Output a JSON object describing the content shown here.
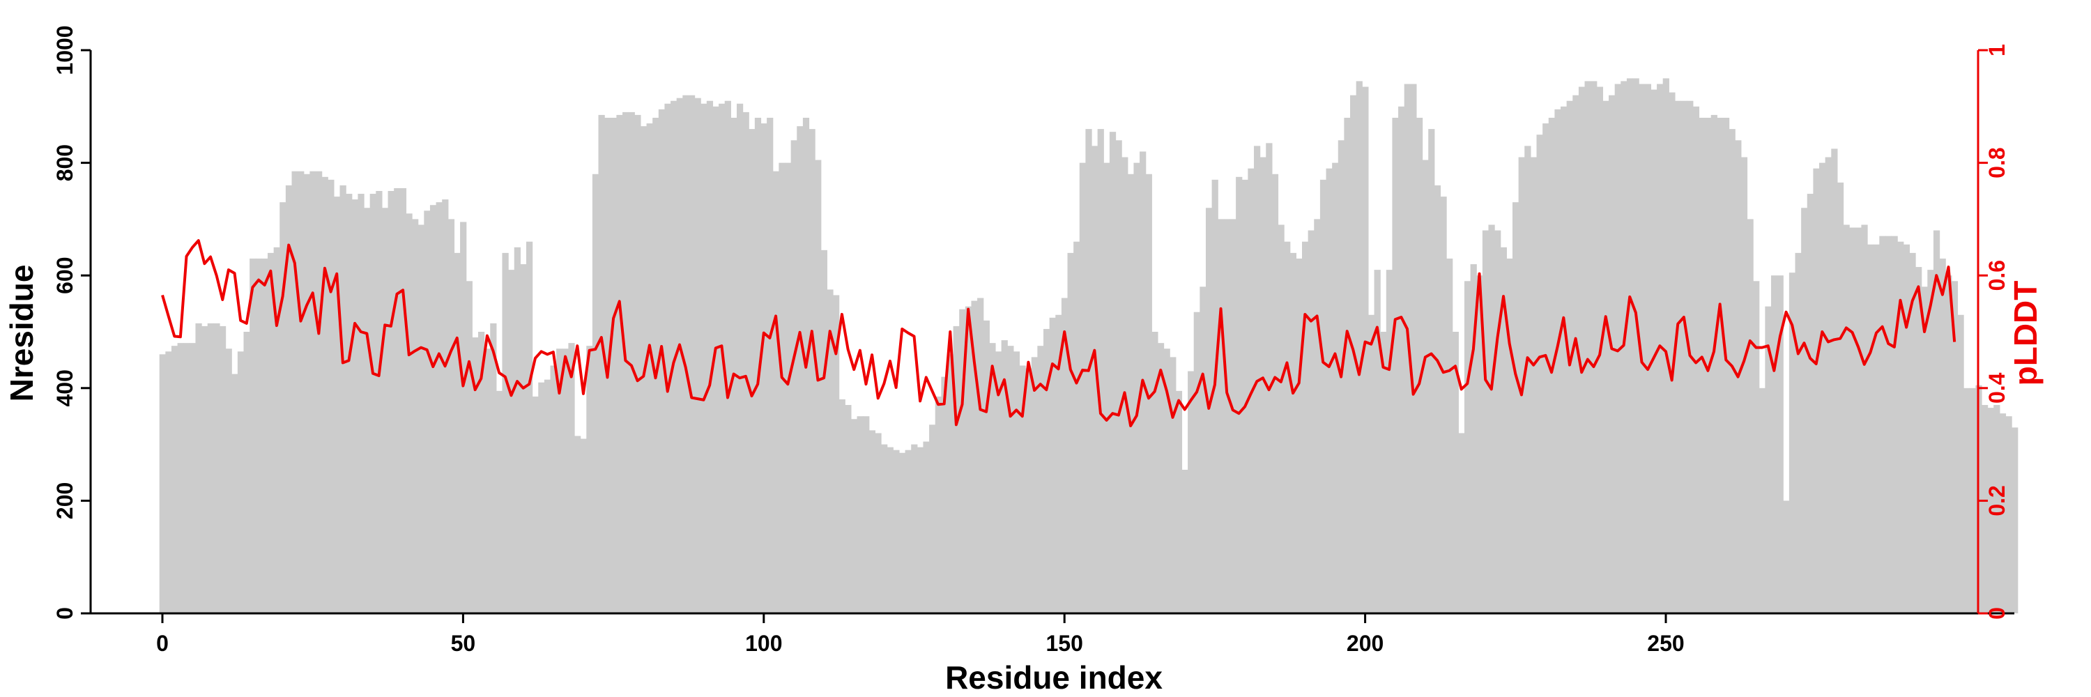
{
  "chart_data": {
    "type": "bar",
    "xlabel": "Residue index",
    "ylabel": "Nresidue",
    "y2label": "pLDDT",
    "xlim": [
      -12,
      310
    ],
    "ylim": [
      0,
      1000
    ],
    "y2lim": [
      0,
      1
    ],
    "x_ticks": [
      0,
      50,
      100,
      150,
      200,
      250
    ],
    "y_ticks": [
      0,
      200,
      400,
      600,
      800,
      1000
    ],
    "y2_ticks": [
      0,
      0.2,
      0.4,
      0.6,
      0.8,
      1
    ],
    "grid": false,
    "colors": {
      "bars": "#cccccc",
      "line": "#ee0000",
      "axis": "#000000",
      "secondary_axis": "#ee0000"
    },
    "series": [
      {
        "kind": "bar",
        "axis": "left",
        "values": [
          460,
          465,
          475,
          480,
          480,
          480,
          515,
          510,
          515,
          515,
          510,
          470,
          425,
          465,
          500,
          630,
          630,
          630,
          640,
          650,
          730,
          760,
          785,
          785,
          780,
          785,
          785,
          775,
          770,
          740,
          760,
          745,
          735,
          745,
          720,
          745,
          750,
          720,
          750,
          755,
          755,
          710,
          700,
          690,
          715,
          725,
          730,
          735,
          700,
          640,
          695,
          590,
          490,
          500,
          470,
          515,
          395,
          640,
          610,
          650,
          620,
          660,
          385,
          410,
          415,
          440,
          470,
          470,
          480,
          315,
          310,
          475,
          780,
          885,
          880,
          880,
          885,
          890,
          890,
          885,
          865,
          870,
          880,
          895,
          905,
          910,
          915,
          920,
          920,
          915,
          905,
          910,
          900,
          905,
          910,
          880,
          905,
          890,
          860,
          880,
          870,
          880,
          785,
          800,
          800,
          840,
          865,
          880,
          860,
          805,
          645,
          575,
          565,
          380,
          370,
          345,
          350,
          350,
          325,
          320,
          300,
          295,
          290,
          285,
          290,
          300,
          295,
          305,
          335,
          385,
          420,
          460,
          510,
          540,
          545,
          555,
          560,
          520,
          480,
          465,
          485,
          475,
          465,
          440,
          435,
          455,
          475,
          505,
          525,
          530,
          560,
          640,
          660,
          800,
          860,
          830,
          860,
          800,
          855,
          840,
          810,
          780,
          800,
          820,
          780,
          500,
          480,
          470,
          455,
          395,
          255,
          430,
          535,
          580,
          720,
          770,
          700,
          700,
          700,
          775,
          770,
          790,
          830,
          810,
          835,
          780,
          690,
          660,
          640,
          630,
          660,
          680,
          700,
          770,
          790,
          800,
          840,
          880,
          920,
          945,
          935,
          530,
          610,
          500,
          610,
          880,
          900,
          940,
          940,
          880,
          805,
          860,
          760,
          740,
          630,
          500,
          320,
          590,
          620,
          600,
          680,
          690,
          680,
          650,
          630,
          730,
          810,
          830,
          810,
          850,
          870,
          880,
          895,
          900,
          910,
          920,
          935,
          945,
          945,
          935,
          910,
          920,
          940,
          945,
          950,
          950,
          940,
          940,
          930,
          940,
          950,
          925,
          910,
          910,
          910,
          900,
          880,
          880,
          885,
          880,
          880,
          860,
          840,
          810,
          700,
          590,
          400,
          545,
          600,
          600,
          200,
          605,
          640,
          720,
          745,
          790,
          800,
          810,
          825,
          765,
          690,
          685,
          685,
          690,
          655,
          655,
          670,
          670,
          670,
          660,
          655,
          640,
          615,
          580,
          610,
          680,
          630,
          600,
          590,
          530,
          400,
          400,
          405,
          370,
          365,
          370,
          355,
          350,
          330
        ]
      },
      {
        "kind": "line",
        "axis": "right",
        "values": [
          0.565,
          0.528,
          0.492,
          0.491,
          0.634,
          0.65,
          0.662,
          0.621,
          0.633,
          0.6,
          0.557,
          0.61,
          0.604,
          0.52,
          0.515,
          0.579,
          0.592,
          0.583,
          0.608,
          0.511,
          0.563,
          0.654,
          0.622,
          0.519,
          0.547,
          0.569,
          0.497,
          0.613,
          0.571,
          0.603,
          0.445,
          0.449,
          0.515,
          0.5,
          0.497,
          0.426,
          0.422,
          0.512,
          0.51,
          0.567,
          0.574,
          0.459,
          0.466,
          0.472,
          0.468,
          0.438,
          0.461,
          0.439,
          0.466,
          0.489,
          0.404,
          0.447,
          0.397,
          0.417,
          0.493,
          0.466,
          0.427,
          0.42,
          0.387,
          0.412,
          0.4,
          0.407,
          0.453,
          0.465,
          0.46,
          0.464,
          0.391,
          0.456,
          0.42,
          0.475,
          0.39,
          0.467,
          0.469,
          0.49,
          0.419,
          0.524,
          0.554,
          0.449,
          0.44,
          0.413,
          0.421,
          0.476,
          0.418,
          0.474,
          0.394,
          0.445,
          0.477,
          0.437,
          0.383,
          0.381,
          0.379,
          0.405,
          0.471,
          0.475,
          0.383,
          0.425,
          0.418,
          0.421,
          0.386,
          0.407,
          0.498,
          0.489,
          0.528,
          0.419,
          0.407,
          0.453,
          0.499,
          0.437,
          0.501,
          0.414,
          0.418,
          0.501,
          0.461,
          0.531,
          0.469,
          0.433,
          0.467,
          0.407,
          0.459,
          0.382,
          0.408,
          0.448,
          0.401,
          0.505,
          0.498,
          0.492,
          0.377,
          0.419,
          0.395,
          0.371,
          0.372,
          0.5,
          0.335,
          0.371,
          0.54,
          0.447,
          0.362,
          0.358,
          0.439,
          0.388,
          0.415,
          0.35,
          0.361,
          0.35,
          0.446,
          0.396,
          0.407,
          0.397,
          0.443,
          0.434,
          0.5,
          0.433,
          0.409,
          0.432,
          0.431,
          0.467,
          0.355,
          0.343,
          0.355,
          0.352,
          0.392,
          0.333,
          0.351,
          0.414,
          0.382,
          0.394,
          0.432,
          0.395,
          0.348,
          0.378,
          0.362,
          0.378,
          0.393,
          0.425,
          0.364,
          0.406,
          0.541,
          0.392,
          0.361,
          0.355,
          0.367,
          0.39,
          0.412,
          0.418,
          0.397,
          0.419,
          0.411,
          0.445,
          0.391,
          0.409,
          0.531,
          0.519,
          0.528,
          0.446,
          0.438,
          0.461,
          0.42,
          0.501,
          0.468,
          0.424,
          0.482,
          0.478,
          0.508,
          0.437,
          0.433,
          0.522,
          0.526,
          0.505,
          0.389,
          0.408,
          0.455,
          0.461,
          0.449,
          0.428,
          0.431,
          0.439,
          0.398,
          0.408,
          0.469,
          0.603,
          0.415,
          0.398,
          0.489,
          0.563,
          0.479,
          0.425,
          0.388,
          0.454,
          0.441,
          0.455,
          0.458,
          0.428,
          0.474,
          0.525,
          0.441,
          0.488,
          0.428,
          0.451,
          0.438,
          0.459,
          0.527,
          0.47,
          0.466,
          0.476,
          0.562,
          0.534,
          0.446,
          0.433,
          0.454,
          0.475,
          0.465,
          0.414,
          0.514,
          0.526,
          0.458,
          0.445,
          0.455,
          0.431,
          0.465,
          0.549,
          0.45,
          0.439,
          0.42,
          0.448,
          0.484,
          0.472,
          0.472,
          0.475,
          0.431,
          0.492,
          0.535,
          0.512,
          0.461,
          0.48,
          0.453,
          0.443,
          0.5,
          0.482,
          0.486,
          0.488,
          0.507,
          0.499,
          0.473,
          0.442,
          0.463,
          0.498,
          0.509,
          0.479,
          0.473,
          0.556,
          0.508,
          0.555,
          0.58,
          0.5,
          0.546,
          0.6,
          0.566,
          0.615,
          0.482
        ]
      }
    ]
  }
}
